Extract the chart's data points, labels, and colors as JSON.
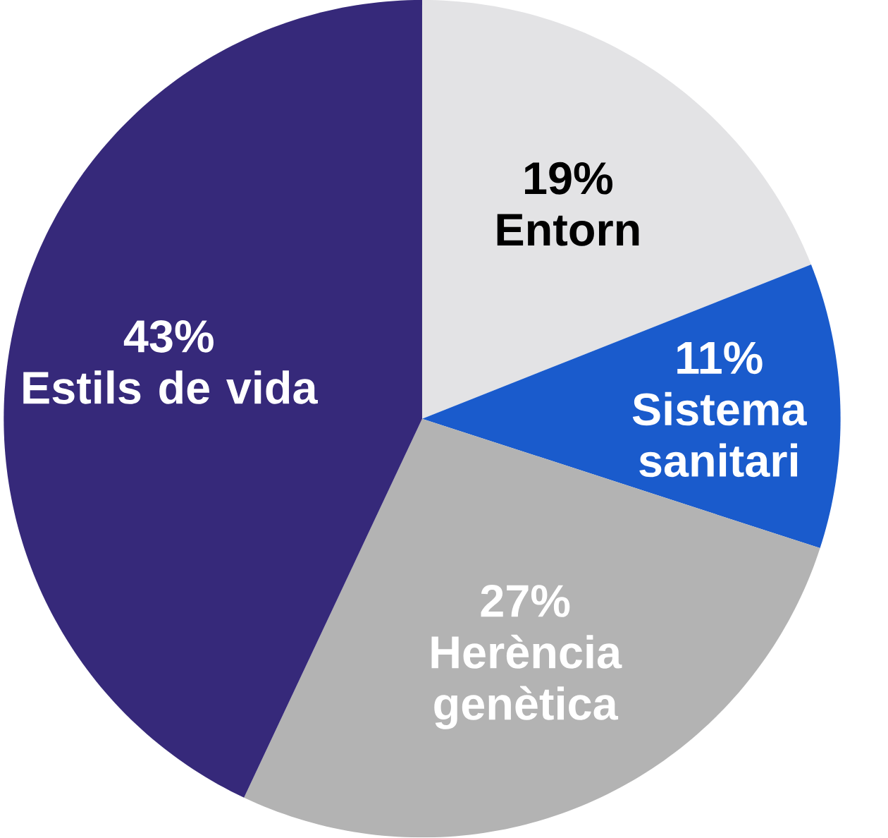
{
  "chart_data": {
    "type": "pie",
    "categories": [
      "Entorn",
      "Sistema sanitari",
      "Herència genètica",
      "Estils de vida"
    ],
    "values": [
      19,
      11,
      27,
      43
    ],
    "value_labels": [
      "19%",
      "11%",
      "27%",
      "43%"
    ],
    "colors": [
      "#e3e3e5",
      "#1a5bcc",
      "#b3b3b3",
      "#36297a"
    ]
  }
}
